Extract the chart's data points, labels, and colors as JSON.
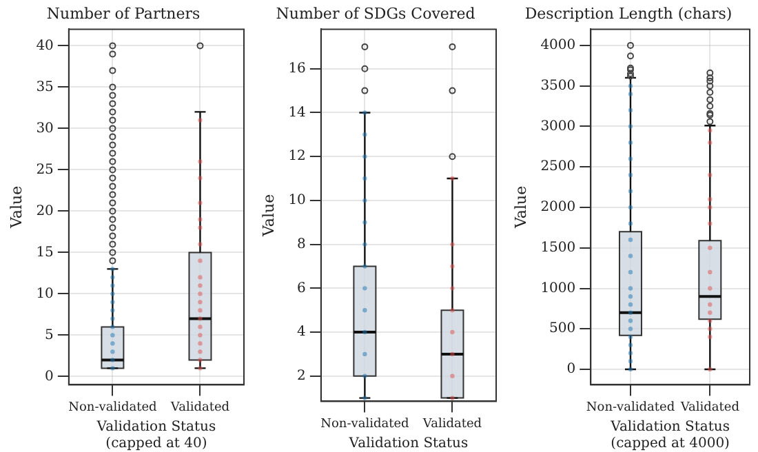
{
  "chart_data": [
    {
      "type": "box",
      "title": "Number of Partners",
      "xlabel": "Validation Status\n(capped at 40)",
      "ylabel": "Value",
      "categories": [
        "Non-validated",
        "Validated"
      ],
      "color": "#cdd6de",
      "grid": true,
      "ylim": [
        -1,
        42
      ],
      "yticks": [
        0,
        5,
        10,
        15,
        20,
        25,
        30,
        35,
        40
      ],
      "boxes": [
        {
          "low": 1,
          "q1": 1,
          "median": 2,
          "q3": 6,
          "high": 13,
          "outliers": [
            14,
            15,
            16,
            17,
            18,
            19,
            20,
            21,
            22,
            23,
            24,
            25,
            26,
            27,
            28,
            29,
            30,
            31,
            32,
            33,
            34,
            35,
            37,
            39,
            40
          ]
        },
        {
          "low": 1,
          "q1": 2,
          "median": 7,
          "q3": 15,
          "high": 32,
          "outliers": [
            40
          ]
        }
      ],
      "series": [
        {
          "type": "scatter",
          "color": "#1f77b4",
          "x": [
            "Non-validated",
            "Non-validated",
            "Non-validated",
            "Non-validated",
            "Non-validated",
            "Non-validated",
            "Non-validated",
            "Non-validated",
            "Non-validated",
            "Non-validated",
            "Non-validated",
            "Non-validated",
            "Non-validated"
          ],
          "values": [
            1,
            2,
            3,
            4,
            5,
            6,
            7,
            8,
            9,
            10,
            11,
            12,
            13
          ]
        },
        {
          "type": "scatter",
          "color": "#e05050",
          "x": [
            "Validated",
            "Validated",
            "Validated",
            "Validated",
            "Validated",
            "Validated",
            "Validated",
            "Validated",
            "Validated",
            "Validated",
            "Validated",
            "Validated",
            "Validated",
            "Validated",
            "Validated",
            "Validated",
            "Validated",
            "Validated",
            "Validated",
            "Validated"
          ],
          "values": [
            1,
            2,
            3,
            4,
            5,
            6,
            7,
            8,
            9,
            10,
            11,
            12,
            14,
            16,
            18,
            19,
            21,
            24,
            26,
            31
          ]
        }
      ]
    },
    {
      "type": "box",
      "title": "Number of SDGs Covered",
      "xlabel": "Validation Status",
      "ylabel": "Value",
      "categories": [
        "Non-validated",
        "Validated"
      ],
      "color": "#cdd6de",
      "grid": true,
      "ylim": [
        0.85,
        17.8
      ],
      "yticks": [
        2,
        4,
        6,
        8,
        10,
        12,
        14,
        16
      ],
      "boxes": [
        {
          "low": 1,
          "q1": 2,
          "median": 4,
          "q3": 7,
          "high": 14,
          "outliers": [
            15,
            16,
            17
          ]
        },
        {
          "low": 1,
          "q1": 1,
          "median": 3,
          "q3": 5,
          "high": 11,
          "outliers": [
            12,
            15,
            17
          ]
        }
      ],
      "series": [
        {
          "type": "scatter",
          "color": "#1f77b4",
          "x": [
            "Non-validated",
            "Non-validated",
            "Non-validated",
            "Non-validated",
            "Non-validated",
            "Non-validated",
            "Non-validated",
            "Non-validated",
            "Non-validated",
            "Non-validated",
            "Non-validated",
            "Non-validated",
            "Non-validated",
            "Non-validated"
          ],
          "values": [
            1,
            2,
            3,
            4,
            5,
            6,
            7,
            8,
            9,
            10,
            11,
            12,
            13,
            14
          ]
        },
        {
          "type": "scatter",
          "color": "#e05050",
          "x": [
            "Validated",
            "Validated",
            "Validated",
            "Validated",
            "Validated",
            "Validated",
            "Validated",
            "Validated",
            "Validated"
          ],
          "values": [
            1,
            2,
            3,
            4,
            5,
            6,
            7,
            8,
            11
          ]
        }
      ]
    },
    {
      "type": "box",
      "title": "Description Length (chars)",
      "xlabel": "Validation Status\n(capped at 4000)",
      "ylabel": "Value",
      "categories": [
        "Non-validated",
        "Validated"
      ],
      "color": "#cdd6de",
      "grid": true,
      "ylim": [
        -190,
        4200
      ],
      "yticks": [
        0,
        500,
        1000,
        1500,
        2000,
        2500,
        3000,
        3500,
        4000
      ],
      "boxes": [
        {
          "low": 0,
          "q1": 420,
          "median": 700,
          "q3": 1700,
          "high": 3600,
          "outliers": [
            3620,
            3650,
            3700,
            3720,
            3870,
            4000
          ]
        },
        {
          "low": 0,
          "q1": 620,
          "median": 900,
          "q3": 1590,
          "high": 3010,
          "outliers": [
            3060,
            3140,
            3160,
            3250,
            3330,
            3420,
            3500,
            3560,
            3600,
            3660
          ]
        }
      ],
      "series": [
        {
          "type": "scatter",
          "color": "#1f77b4",
          "x": [
            "Non-validated",
            "Non-validated",
            "Non-validated",
            "Non-validated",
            "Non-validated",
            "Non-validated",
            "Non-validated",
            "Non-validated",
            "Non-validated",
            "Non-validated",
            "Non-validated",
            "Non-validated",
            "Non-validated",
            "Non-validated",
            "Non-validated",
            "Non-validated",
            "Non-validated",
            "Non-validated",
            "Non-validated",
            "Non-validated",
            "Non-validated",
            "Non-validated",
            "Non-validated",
            "Non-validated"
          ],
          "values": [
            0,
            100,
            200,
            300,
            400,
            500,
            600,
            700,
            800,
            900,
            1000,
            1200,
            1400,
            1600,
            1800,
            2000,
            2200,
            2400,
            2600,
            2800,
            3000,
            3200,
            3400,
            3500
          ]
        },
        {
          "type": "scatter",
          "color": "#e05050",
          "x": [
            "Validated",
            "Validated",
            "Validated",
            "Validated",
            "Validated",
            "Validated",
            "Validated",
            "Validated",
            "Validated",
            "Validated",
            "Validated",
            "Validated",
            "Validated",
            "Validated",
            "Validated"
          ],
          "values": [
            0,
            400,
            500,
            600,
            700,
            800,
            1000,
            1200,
            1500,
            1800,
            2000,
            2100,
            2400,
            2800,
            2950
          ]
        }
      ]
    }
  ]
}
